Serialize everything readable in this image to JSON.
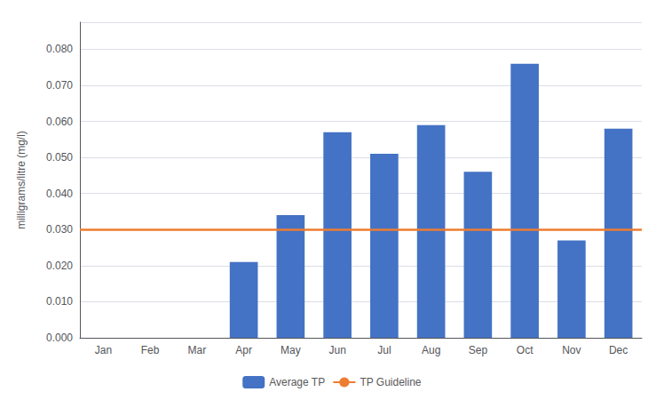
{
  "chart_data": {
    "type": "bar",
    "ylabel": "milligrams/litre (mg/l)",
    "categories": [
      "Jan",
      "Feb",
      "Mar",
      "Apr",
      "May",
      "Jun",
      "Jul",
      "Aug",
      "Sep",
      "Oct",
      "Nov",
      "Dec"
    ],
    "series": [
      {
        "name": "Average TP",
        "color": "#4472C4",
        "values": [
          0.0,
          0.0,
          0.0,
          0.021,
          0.034,
          0.057,
          0.051,
          0.059,
          0.046,
          0.076,
          0.027,
          0.058
        ]
      }
    ],
    "reference_line": {
      "name": "TP Guideline",
      "value": 0.03,
      "color": "#ED7D31"
    },
    "ylim": [
      0.0,
      0.0875
    ],
    "yticks": [
      {
        "value": 0.0,
        "label": "0.000"
      },
      {
        "value": 0.01,
        "label": "0.010"
      },
      {
        "value": 0.02,
        "label": "0.020"
      },
      {
        "value": 0.03,
        "label": "0.030"
      },
      {
        "value": 0.04,
        "label": "0.040"
      },
      {
        "value": 0.05,
        "label": "0.050"
      },
      {
        "value": 0.06,
        "label": "0.060"
      },
      {
        "value": 0.07,
        "label": "0.070"
      },
      {
        "value": 0.08,
        "label": "0.080"
      }
    ],
    "grid": true,
    "legend": "bottom"
  }
}
